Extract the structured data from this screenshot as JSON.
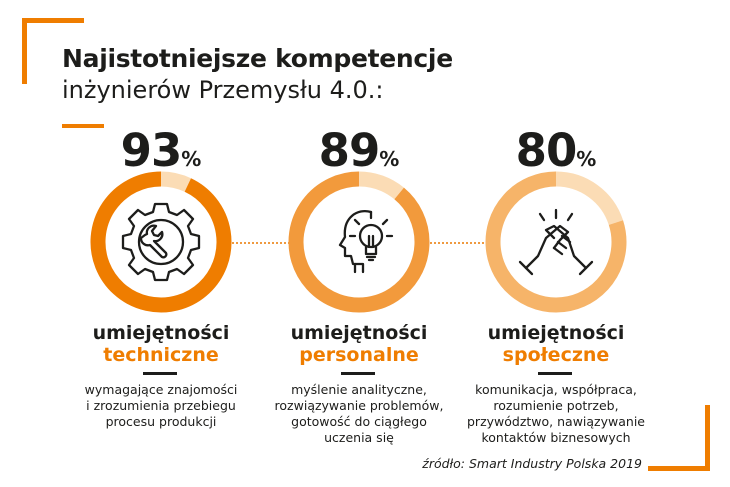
{
  "title": {
    "line1": "Najistotniejsze kompetencje",
    "line2": "inżynierów Przemysłu 4.0.:"
  },
  "colors": {
    "accent": "#ef7d00",
    "remainder": "#fbdcb5"
  },
  "chart_data": {
    "type": "donut",
    "items": [
      {
        "value": 93,
        "unit": "%",
        "label_line1": "umiejętności",
        "label_line2": "techniczne",
        "icon": "gear-wrench-icon",
        "color": "#ef7d00",
        "description": [
          "wymagające znajomości",
          "i zrozumienia przebiegu",
          "procesu produkcji"
        ]
      },
      {
        "value": 89,
        "unit": "%",
        "label_line1": "umiejętności",
        "label_line2": "personalne",
        "icon": "head-lightbulb-icon",
        "color": "#f29a3c",
        "description": [
          "myślenie analityczne,",
          "rozwiązywanie problemów,",
          "gotowość do ciągłego",
          "uczenia się"
        ]
      },
      {
        "value": 80,
        "unit": "%",
        "label_line1": "umiejętności",
        "label_line2": "społeczne",
        "icon": "handshake-icon",
        "color": "#f6b469",
        "description": [
          "komunikacja, współpraca,",
          "rozumienie potrzeb,",
          "przywództwo, nawiązywanie",
          "kontaktów biznesowych"
        ]
      }
    ]
  },
  "source": "źródło: Smart Industry Polska 2019"
}
